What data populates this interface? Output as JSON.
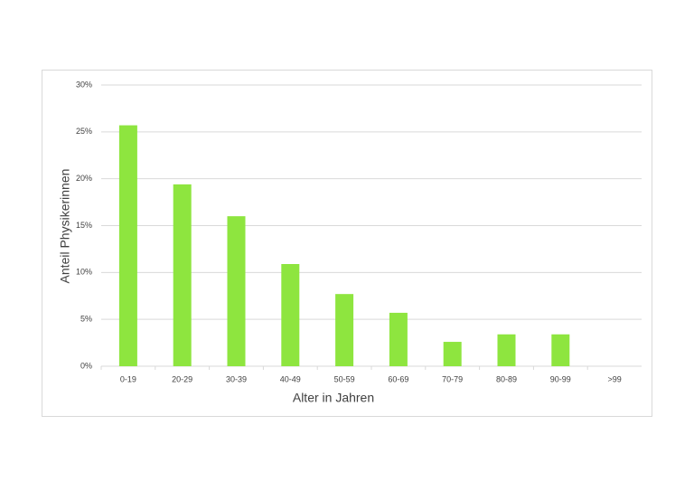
{
  "chart_data": {
    "type": "bar",
    "x_label": "Alter in Jahren",
    "y_label": "Anteil Physikerinnen",
    "categories": [
      "0-19",
      "20-29",
      "30-39",
      "40-49",
      "50-59",
      "60-69",
      "70-79",
      "80-89",
      "90-99",
      ">99"
    ],
    "values": [
      25.7,
      19.4,
      16.0,
      10.9,
      7.7,
      5.7,
      2.6,
      3.4,
      3.4,
      0
    ],
    "color": "#8ee53f",
    "ylim": [
      0,
      30
    ],
    "yticks": [
      {
        "value": 0,
        "label": "0%"
      },
      {
        "value": 5,
        "label": "5%"
      },
      {
        "value": 10,
        "label": "10%"
      },
      {
        "value": 15,
        "label": "15%"
      },
      {
        "value": 20,
        "label": "20%"
      },
      {
        "value": 25,
        "label": "25%"
      },
      {
        "value": 30,
        "label": "30%"
      }
    ],
    "grid": true
  }
}
